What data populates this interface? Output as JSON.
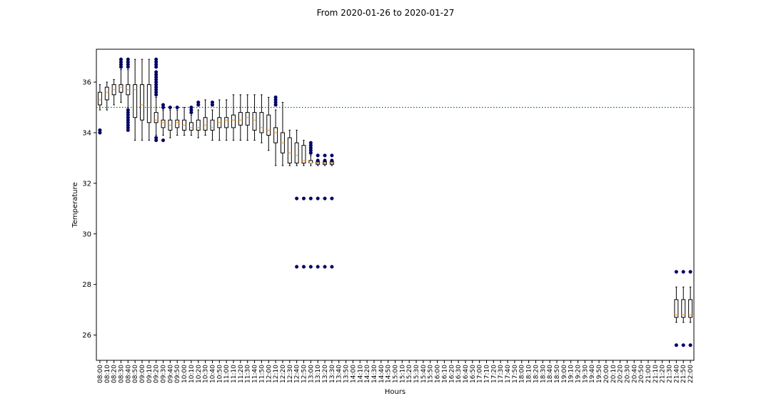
{
  "chart_data": {
    "type": "box",
    "title": "From 2020-01-26 to 2020-01-27",
    "xlabel": "Hours",
    "ylabel": "Temperature",
    "ylim": [
      25.0,
      37.3
    ],
    "yticks": [
      26,
      28,
      30,
      32,
      34,
      36
    ],
    "reference_line": {
      "y": 35.0,
      "color": "#008000",
      "style": "dotted"
    },
    "colors": {
      "box": "#000000",
      "median": "#ff8c00",
      "outlier": "#000066",
      "reference": "#008000"
    },
    "categories": [
      "08:00",
      "08:10",
      "08:20",
      "08:30",
      "08:40",
      "08:50",
      "09:00",
      "09:10",
      "09:20",
      "09:30",
      "09:40",
      "09:50",
      "10:00",
      "10:10",
      "10:20",
      "10:30",
      "10:40",
      "10:50",
      "11:00",
      "11:10",
      "11:20",
      "11:30",
      "11:40",
      "11:50",
      "12:00",
      "12:10",
      "12:20",
      "12:30",
      "12:40",
      "12:50",
      "13:00",
      "13:10",
      "13:20",
      "13:30",
      "13:40",
      "13:50",
      "14:00",
      "14:10",
      "14:20",
      "14:30",
      "14:40",
      "14:50",
      "15:00",
      "15:10",
      "15:20",
      "15:30",
      "15:40",
      "15:50",
      "16:00",
      "16:10",
      "16:20",
      "16:30",
      "16:40",
      "16:50",
      "17:00",
      "17:10",
      "17:20",
      "17:30",
      "17:40",
      "17:50",
      "18:00",
      "18:10",
      "18:20",
      "18:30",
      "18:40",
      "18:50",
      "19:00",
      "19:10",
      "19:20",
      "19:30",
      "19:40",
      "19:50",
      "20:00",
      "20:10",
      "20:20",
      "20:30",
      "20:40",
      "20:50",
      "21:00",
      "21:10",
      "21:20",
      "21:30",
      "21:40",
      "21:50",
      "22:00"
    ],
    "boxes": [
      {
        "category": "08:00",
        "whislo": 34.9,
        "q1": 35.1,
        "med": 35.3,
        "q3": 35.6,
        "whishi": 35.9,
        "fliers": [
          34.0,
          34.1
        ]
      },
      {
        "category": "08:10",
        "whislo": 34.9,
        "q1": 35.3,
        "med": 35.6,
        "q3": 35.8,
        "whishi": 36.0,
        "fliers": []
      },
      {
        "category": "08:20",
        "whislo": 35.1,
        "q1": 35.5,
        "med": 35.7,
        "q3": 35.9,
        "whishi": 36.1,
        "fliers": []
      },
      {
        "category": "08:30",
        "whislo": 35.2,
        "q1": 35.6,
        "med": 35.8,
        "q3": 35.9,
        "whishi": 36.5,
        "fliers": [
          36.6,
          36.7,
          36.8,
          36.9
        ]
      },
      {
        "category": "08:40",
        "whislo": 35.0,
        "q1": 35.5,
        "med": 35.7,
        "q3": 35.9,
        "whishi": 36.5,
        "fliers": [
          34.1,
          34.2,
          34.3,
          34.4,
          34.5,
          34.6,
          34.7,
          34.8,
          34.9,
          36.6,
          36.7,
          36.8,
          36.9
        ]
      },
      {
        "category": "08:50",
        "whislo": 33.7,
        "q1": 34.6,
        "med": 35.7,
        "q3": 35.9,
        "whishi": 36.9,
        "fliers": []
      },
      {
        "category": "09:00",
        "whislo": 33.7,
        "q1": 34.5,
        "med": 35.1,
        "q3": 35.9,
        "whishi": 36.9,
        "fliers": []
      },
      {
        "category": "09:10",
        "whislo": 33.7,
        "q1": 34.4,
        "med": 35.0,
        "q3": 35.9,
        "whishi": 36.9,
        "fliers": []
      },
      {
        "category": "09:20",
        "whislo": 33.9,
        "q1": 34.4,
        "med": 34.5,
        "q3": 34.8,
        "whishi": 35.4,
        "fliers": [
          33.7,
          33.8,
          35.5,
          35.6,
          35.7,
          35.8,
          35.9,
          36.0,
          36.1,
          36.2,
          36.3,
          36.4,
          36.6,
          36.7,
          36.8,
          36.9
        ]
      },
      {
        "category": "09:30",
        "whislo": 33.9,
        "q1": 34.2,
        "med": 34.4,
        "q3": 34.5,
        "whishi": 34.9,
        "fliers": [
          33.7,
          35.0,
          35.1
        ]
      },
      {
        "category": "09:40",
        "whislo": 33.8,
        "q1": 34.1,
        "med": 34.3,
        "q3": 34.5,
        "whishi": 34.9,
        "fliers": [
          35.0
        ]
      },
      {
        "category": "09:50",
        "whislo": 33.9,
        "q1": 34.2,
        "med": 34.4,
        "q3": 34.5,
        "whishi": 34.9,
        "fliers": [
          35.0
        ]
      },
      {
        "category": "10:00",
        "whislo": 33.9,
        "q1": 34.1,
        "med": 34.3,
        "q3": 34.5,
        "whishi": 35.0,
        "fliers": []
      },
      {
        "category": "10:10",
        "whislo": 33.9,
        "q1": 34.1,
        "med": 34.2,
        "q3": 34.4,
        "whishi": 34.7,
        "fliers": [
          34.8,
          34.9,
          35.0
        ]
      },
      {
        "category": "10:20",
        "whislo": 33.8,
        "q1": 34.1,
        "med": 34.2,
        "q3": 34.5,
        "whishi": 34.9,
        "fliers": [
          35.1,
          35.2
        ]
      },
      {
        "category": "10:30",
        "whislo": 33.9,
        "q1": 34.1,
        "med": 34.3,
        "q3": 34.6,
        "whishi": 35.3,
        "fliers": []
      },
      {
        "category": "10:40",
        "whislo": 33.7,
        "q1": 34.1,
        "med": 34.2,
        "q3": 34.5,
        "whishi": 34.9,
        "fliers": [
          35.1,
          35.2
        ]
      },
      {
        "category": "10:50",
        "whislo": 33.7,
        "q1": 34.2,
        "med": 34.4,
        "q3": 34.6,
        "whishi": 35.3,
        "fliers": []
      },
      {
        "category": "11:00",
        "whislo": 33.7,
        "q1": 34.2,
        "med": 34.5,
        "q3": 34.6,
        "whishi": 35.3,
        "fliers": []
      },
      {
        "category": "11:10",
        "whislo": 33.7,
        "q1": 34.2,
        "med": 34.5,
        "q3": 34.7,
        "whishi": 35.5,
        "fliers": []
      },
      {
        "category": "11:20",
        "whislo": 33.7,
        "q1": 34.3,
        "med": 34.5,
        "q3": 34.8,
        "whishi": 35.5,
        "fliers": []
      },
      {
        "category": "11:30",
        "whislo": 33.7,
        "q1": 34.3,
        "med": 34.6,
        "q3": 34.8,
        "whishi": 35.5,
        "fliers": []
      },
      {
        "category": "11:40",
        "whislo": 33.7,
        "q1": 34.1,
        "med": 34.5,
        "q3": 34.8,
        "whishi": 35.5,
        "fliers": []
      },
      {
        "category": "11:50",
        "whislo": 33.6,
        "q1": 34.0,
        "med": 34.2,
        "q3": 34.8,
        "whishi": 35.5,
        "fliers": []
      },
      {
        "category": "12:00",
        "whislo": 33.3,
        "q1": 33.9,
        "med": 34.1,
        "q3": 34.7,
        "whishi": 35.4,
        "fliers": []
      },
      {
        "category": "12:10",
        "whislo": 32.7,
        "q1": 33.6,
        "med": 34.0,
        "q3": 34.2,
        "whishi": 34.9,
        "fliers": [
          35.1,
          35.2,
          35.3,
          35.4
        ]
      },
      {
        "category": "12:20",
        "whislo": 32.7,
        "q1": 33.2,
        "med": 33.6,
        "q3": 34.0,
        "whishi": 35.2,
        "fliers": []
      },
      {
        "category": "12:30",
        "whislo": 32.7,
        "q1": 32.8,
        "med": 33.2,
        "q3": 33.8,
        "whishi": 34.1,
        "fliers": []
      },
      {
        "category": "12:40",
        "whislo": 32.7,
        "q1": 32.8,
        "med": 33.1,
        "q3": 33.6,
        "whishi": 34.1,
        "fliers": [
          28.7,
          31.4
        ]
      },
      {
        "category": "12:50",
        "whislo": 32.7,
        "q1": 32.8,
        "med": 32.9,
        "q3": 33.5,
        "whishi": 33.7,
        "fliers": [
          28.7,
          31.4
        ]
      },
      {
        "category": "13:00",
        "whislo": 32.7,
        "q1": 32.8,
        "med": 32.8,
        "q3": 32.9,
        "whishi": 33.1,
        "fliers": [
          28.7,
          31.4,
          33.2,
          33.3,
          33.4,
          33.5,
          33.6
        ]
      },
      {
        "category": "13:10",
        "whislo": 32.7,
        "q1": 32.75,
        "med": 32.8,
        "q3": 32.85,
        "whishi": 32.9,
        "fliers": [
          28.7,
          31.4,
          32.9,
          33.1
        ]
      },
      {
        "category": "13:20",
        "whislo": 32.7,
        "q1": 32.75,
        "med": 32.8,
        "q3": 32.85,
        "whishi": 32.9,
        "fliers": [
          28.7,
          31.4,
          32.9,
          33.1
        ]
      },
      {
        "category": "13:30",
        "whislo": 32.7,
        "q1": 32.75,
        "med": 32.8,
        "q3": 32.85,
        "whishi": 32.9,
        "fliers": [
          28.7,
          31.4,
          32.9,
          33.1
        ]
      },
      {
        "category": "21:40",
        "whislo": 26.5,
        "q1": 26.7,
        "med": 26.8,
        "q3": 27.4,
        "whishi": 27.9,
        "fliers": [
          25.6,
          28.5
        ]
      },
      {
        "category": "21:50",
        "whislo": 26.5,
        "q1": 26.7,
        "med": 26.8,
        "q3": 27.4,
        "whishi": 27.9,
        "fliers": [
          25.6,
          28.5
        ]
      },
      {
        "category": "22:00",
        "whislo": 26.5,
        "q1": 26.7,
        "med": 26.8,
        "q3": 27.4,
        "whishi": 27.9,
        "fliers": [
          25.6,
          28.5
        ]
      }
    ]
  }
}
